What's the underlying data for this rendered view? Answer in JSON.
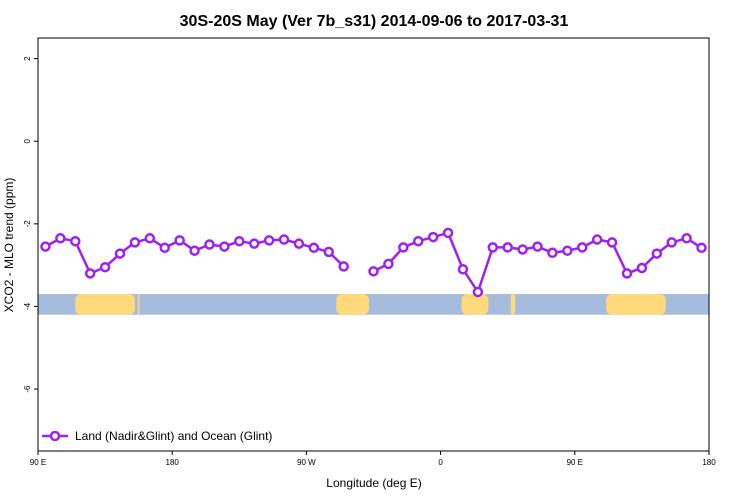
{
  "chart_data": {
    "type": "line",
    "title": "30S-20S May (Ver 7b_s31)   2014-09-06 to 2017-03-31",
    "xlabel": "Longitude (deg E)",
    "ylabel": "XCO2 - MLO trend (ppm)",
    "xlim": [
      90,
      540
    ],
    "ylim": [
      -7.5,
      2.5
    ],
    "x_ticks": [
      {
        "value": 90,
        "label": "90 E"
      },
      {
        "value": 180,
        "label": "180"
      },
      {
        "value": 270,
        "label": "90 W"
      },
      {
        "value": 360,
        "label": "0"
      },
      {
        "value": 450,
        "label": "90 E"
      },
      {
        "value": 540,
        "label": "180"
      }
    ],
    "y_ticks": [
      {
        "value": 2,
        "label": "2"
      },
      {
        "value": 0,
        "label": "0"
      },
      {
        "value": -2,
        "label": "-2"
      },
      {
        "value": -4,
        "label": "-4"
      },
      {
        "value": -6,
        "label": "-6"
      }
    ],
    "series": [
      {
        "name": "Land (Nadir&Glint) and Ocean (Glint)",
        "color": "#a020f0",
        "segments": [
          [
            [
              95,
              -2.55
            ],
            [
              105,
              -2.35
            ],
            [
              115,
              -2.42
            ],
            [
              125,
              -3.2
            ],
            [
              135,
              -3.05
            ],
            [
              145,
              -2.72
            ],
            [
              155,
              -2.45
            ],
            [
              165,
              -2.35
            ],
            [
              175,
              -2.58
            ],
            [
              185,
              -2.4
            ],
            [
              195,
              -2.65
            ],
            [
              205,
              -2.5
            ],
            [
              215,
              -2.55
            ],
            [
              225,
              -2.42
            ],
            [
              235,
              -2.48
            ],
            [
              245,
              -2.4
            ],
            [
              255,
              -2.38
            ],
            [
              265,
              -2.48
            ],
            [
              275,
              -2.58
            ],
            [
              285,
              -2.68
            ],
            [
              295,
              -3.03
            ]
          ],
          [
            [
              315,
              -3.15
            ],
            [
              325,
              -2.97
            ],
            [
              335,
              -2.57
            ],
            [
              345,
              -2.42
            ],
            [
              355,
              -2.32
            ],
            [
              365,
              -2.22
            ],
            [
              375,
              -3.1
            ],
            [
              385,
              -3.65
            ],
            [
              395,
              -2.57
            ],
            [
              405,
              -2.57
            ],
            [
              415,
              -2.62
            ],
            [
              425,
              -2.55
            ],
            [
              435,
              -2.7
            ],
            [
              445,
              -2.65
            ],
            [
              455,
              -2.57
            ],
            [
              465,
              -2.38
            ],
            [
              475,
              -2.45
            ],
            [
              485,
              -3.2
            ],
            [
              495,
              -3.07
            ],
            [
              505,
              -2.72
            ],
            [
              515,
              -2.45
            ],
            [
              525,
              -2.35
            ],
            [
              535,
              -2.58
            ]
          ]
        ]
      }
    ],
    "band": {
      "y_range": [
        -4.2,
        -3.7
      ],
      "ocean_color": "#a6bcdc",
      "land_color": "#ffd97a",
      "land_x_ranges": [
        [
          115,
          155
        ],
        [
          157,
          158
        ],
        [
          290,
          312
        ],
        [
          374,
          392
        ],
        [
          407,
          410
        ],
        [
          471,
          511
        ]
      ]
    },
    "legend": {
      "position": "bottom-left"
    },
    "grid": false
  }
}
